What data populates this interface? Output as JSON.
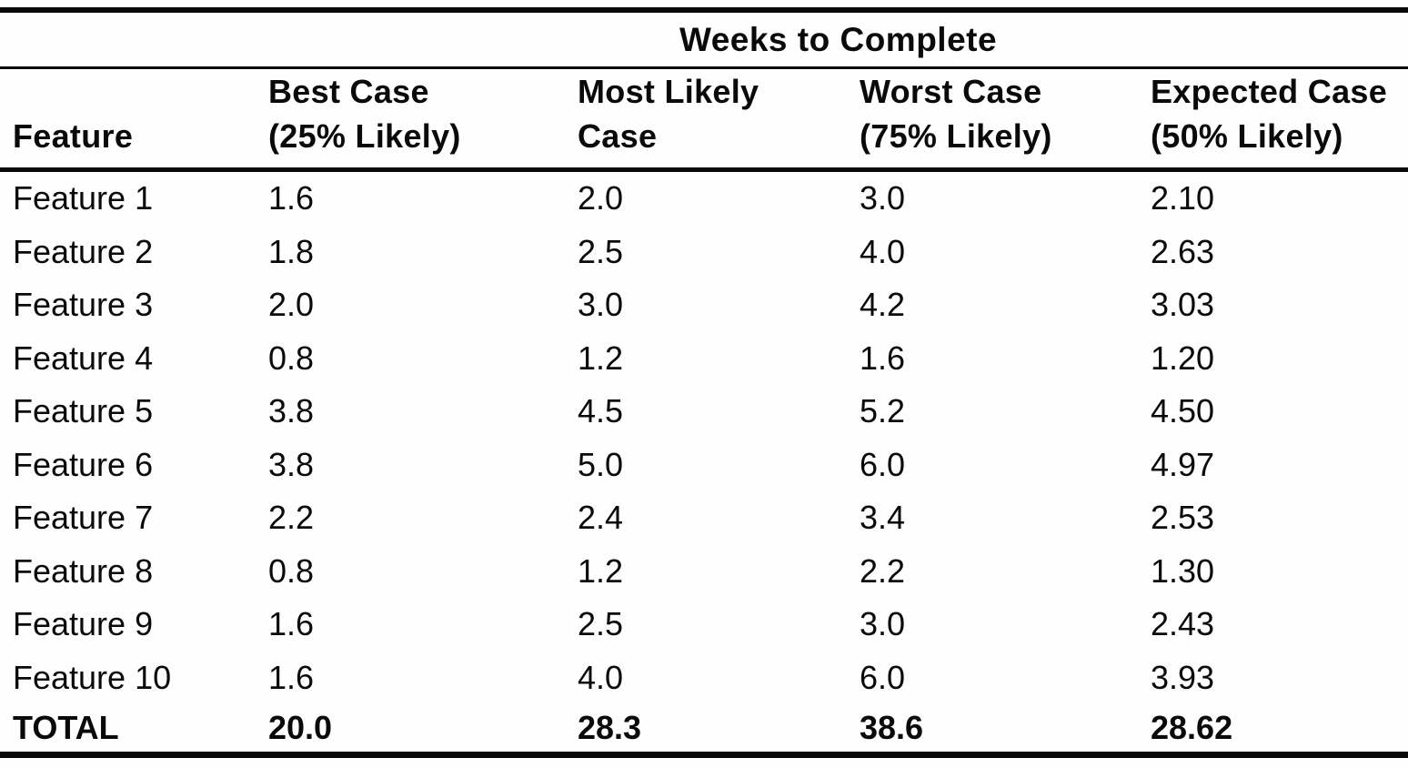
{
  "table": {
    "spanner_header": "Weeks to Complete",
    "columns": [
      {
        "line1": "",
        "line2": "Feature"
      },
      {
        "line1": "Best Case",
        "line2": "(25% Likely)"
      },
      {
        "line1": "Most Likely",
        "line2": "Case"
      },
      {
        "line1": "Worst Case",
        "line2": "(75% Likely)"
      },
      {
        "line1": "Expected Case",
        "line2": "(50% Likely)"
      }
    ],
    "rows": [
      {
        "feature": "Feature 1",
        "best": "1.6",
        "likely": "2.0",
        "worst": "3.0",
        "expected": "2.10"
      },
      {
        "feature": "Feature 2",
        "best": "1.8",
        "likely": "2.5",
        "worst": "4.0",
        "expected": "2.63"
      },
      {
        "feature": "Feature 3",
        "best": "2.0",
        "likely": "3.0",
        "worst": "4.2",
        "expected": "3.03"
      },
      {
        "feature": "Feature 4",
        "best": "0.8",
        "likely": "1.2",
        "worst": "1.6",
        "expected": "1.20"
      },
      {
        "feature": "Feature 5",
        "best": "3.8",
        "likely": "4.5",
        "worst": "5.2",
        "expected": "4.50"
      },
      {
        "feature": "Feature 6",
        "best": "3.8",
        "likely": "5.0",
        "worst": "6.0",
        "expected": "4.97"
      },
      {
        "feature": "Feature 7",
        "best": "2.2",
        "likely": "2.4",
        "worst": "3.4",
        "expected": "2.53"
      },
      {
        "feature": "Feature 8",
        "best": "0.8",
        "likely": "1.2",
        "worst": "2.2",
        "expected": "1.30"
      },
      {
        "feature": "Feature 9",
        "best": "1.6",
        "likely": "2.5",
        "worst": "3.0",
        "expected": "2.43"
      },
      {
        "feature": "Feature 10",
        "best": "1.6",
        "likely": "4.0",
        "worst": "6.0",
        "expected": "3.93"
      }
    ],
    "total": {
      "feature": "TOTAL",
      "best": "20.0",
      "likely": "28.3",
      "worst": "38.6",
      "expected": "28.62"
    }
  }
}
